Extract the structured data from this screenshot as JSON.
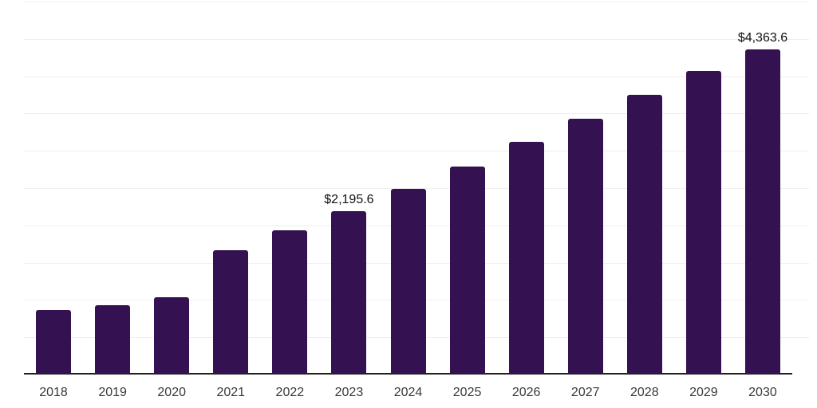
{
  "chart_data": {
    "type": "bar",
    "title": "",
    "xlabel": "",
    "ylabel": "",
    "categories": [
      "2018",
      "2019",
      "2020",
      "2021",
      "2022",
      "2023",
      "2024",
      "2025",
      "2026",
      "2027",
      "2028",
      "2029",
      "2030"
    ],
    "values": [
      870,
      925,
      1040,
      1665,
      1935,
      2195.6,
      2490,
      2785,
      3120,
      3430,
      3755,
      4070,
      4363.6
    ],
    "annotations": [
      {
        "category": "2023",
        "label": "$2,195.6"
      },
      {
        "category": "2030",
        "label": "$4,363.6"
      }
    ],
    "ylim": [
      0,
      5000
    ],
    "gridline_step": 500,
    "grid": true,
    "legend": false,
    "colors": {
      "bar": "#341150",
      "axis_line": "#222222",
      "gridline": "#efefef",
      "tick_label": "#3a3a3a",
      "data_label": "#111111",
      "background": "#ffffff"
    }
  }
}
